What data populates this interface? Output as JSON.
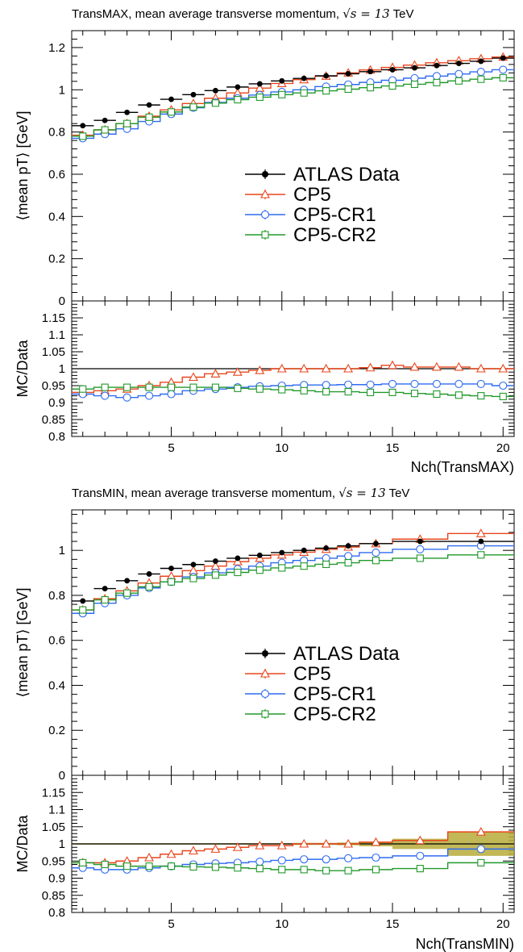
{
  "figure": {
    "panels": [
      {
        "title_text": "TransMAX, mean average transverse momentum, ",
        "title_math": "√s = 13",
        "title_unit": "TeV",
        "ylabel": "⟨mean pT⟩ [GeV]",
        "ratio_ylabel": "MC/Data",
        "xlabel": "Nch(TransMAX)"
      },
      {
        "title_text": "TransMIN, mean average transverse momentum, ",
        "title_math": "√s = 13",
        "title_unit": "TeV",
        "ylabel": "⟨mean pT⟩ [GeV]",
        "ratio_ylabel": "MC/Data",
        "xlabel": "Nch(TransMIN)"
      }
    ]
  },
  "chart_data": [
    {
      "type": "line",
      "panel": "TransMAX",
      "title": "TransMAX, mean average transverse momentum, √s = 13 TeV",
      "xlabel": "Nch(TransMAX)",
      "ylabel": "⟨mean pT⟩ [GeV]",
      "xlim": [
        0.5,
        20.5
      ],
      "ylim": [
        0,
        1.28
      ],
      "yticks": [
        0,
        0.2,
        0.4,
        0.6,
        0.8,
        1,
        1.2
      ],
      "xticks": [
        5,
        10,
        15,
        20
      ],
      "ratio_ylim": [
        0.8,
        1.2
      ],
      "ratio_yticks": [
        0.8,
        0.85,
        0.9,
        0.95,
        1,
        1.05,
        1.1,
        1.15
      ],
      "legend_position": "center-right",
      "data_points": {
        "name": "ATLAS Data",
        "x": [
          1,
          2,
          3,
          4,
          5,
          6,
          7,
          8,
          9,
          10,
          11,
          12,
          13,
          14,
          15,
          16,
          17,
          18,
          19,
          20
        ],
        "values": [
          0.83,
          0.855,
          0.893,
          0.928,
          0.955,
          0.977,
          0.996,
          1.013,
          1.028,
          1.042,
          1.054,
          1.066,
          1.076,
          1.086,
          1.095,
          1.104,
          1.115,
          1.125,
          1.135,
          1.15
        ]
      },
      "series": [
        {
          "name": "CP5",
          "color": "#e8461c",
          "marker": "triangle",
          "bin_edges": [
            0.5,
            1.5,
            2.5,
            3.5,
            4.5,
            5.5,
            6.5,
            7.5,
            8.5,
            9.5,
            10.5,
            11.5,
            12.5,
            13.5,
            14.5,
            15.5,
            16.5,
            17.5,
            18.5,
            19.5,
            20.5
          ],
          "values": [
            0.785,
            0.81,
            0.84,
            0.875,
            0.905,
            0.935,
            0.96,
            0.985,
            1.008,
            1.03,
            1.048,
            1.065,
            1.08,
            1.094,
            1.106,
            1.117,
            1.128,
            1.138,
            1.147,
            1.155
          ],
          "ratio": [
            0.93,
            0.935,
            0.94,
            0.95,
            0.96,
            0.975,
            0.985,
            0.99,
            0.995,
            1.0,
            1.0,
            1.0,
            1.0,
            1.003,
            1.01,
            1.005,
            1.005,
            1.005,
            1.0,
            1.0
          ]
        },
        {
          "name": "CP5-CR1",
          "color": "#2f6bf0",
          "marker": "circle",
          "bin_edges": [
            0.5,
            1.5,
            2.5,
            3.5,
            4.5,
            5.5,
            6.5,
            7.5,
            8.5,
            9.5,
            10.5,
            11.5,
            12.5,
            13.5,
            14.5,
            15.5,
            16.5,
            17.5,
            18.5,
            19.5,
            20.5
          ],
          "values": [
            0.77,
            0.79,
            0.815,
            0.85,
            0.885,
            0.915,
            0.94,
            0.96,
            0.975,
            0.99,
            1.0,
            1.015,
            1.025,
            1.035,
            1.045,
            1.055,
            1.065,
            1.075,
            1.085,
            1.095
          ],
          "ratio": [
            0.925,
            0.92,
            0.915,
            0.92,
            0.925,
            0.935,
            0.94,
            0.945,
            0.948,
            0.95,
            0.952,
            0.952,
            0.953,
            0.953,
            0.955,
            0.955,
            0.955,
            0.955,
            0.955,
            0.95
          ]
        },
        {
          "name": "CP5-CR2",
          "color": "#22992b",
          "marker": "square",
          "bin_edges": [
            0.5,
            1.5,
            2.5,
            3.5,
            4.5,
            5.5,
            6.5,
            7.5,
            8.5,
            9.5,
            10.5,
            11.5,
            12.5,
            13.5,
            14.5,
            15.5,
            16.5,
            17.5,
            18.5,
            19.5,
            20.5
          ],
          "values": [
            0.78,
            0.81,
            0.84,
            0.87,
            0.895,
            0.918,
            0.937,
            0.953,
            0.965,
            0.977,
            0.985,
            0.995,
            1.003,
            1.01,
            1.018,
            1.026,
            1.034,
            1.042,
            1.05,
            1.057
          ],
          "ratio": [
            0.94,
            0.945,
            0.945,
            0.945,
            0.945,
            0.945,
            0.945,
            0.942,
            0.94,
            0.938,
            0.935,
            0.932,
            0.932,
            0.93,
            0.93,
            0.927,
            0.925,
            0.922,
            0.92,
            0.918
          ]
        }
      ]
    },
    {
      "type": "line",
      "panel": "TransMIN",
      "title": "TransMIN, mean average transverse momentum, √s = 13 TeV",
      "xlabel": "Nch(TransMIN)",
      "ylabel": "⟨mean pT⟩ [GeV]",
      "xlim": [
        0.5,
        20.5
      ],
      "ylim": [
        0,
        1.18
      ],
      "yticks": [
        0,
        0.2,
        0.4,
        0.6,
        0.8,
        1
      ],
      "xticks": [
        5,
        10,
        15,
        20
      ],
      "ratio_ylim": [
        0.8,
        1.2
      ],
      "ratio_yticks": [
        0.8,
        0.85,
        0.9,
        0.95,
        1,
        1.05,
        1.1,
        1.15
      ],
      "legend_position": "center-right",
      "uncertainty_band": {
        "bin_edges": [
          0.5,
          1.5,
          2.5,
          3.5,
          4.5,
          5.5,
          6.5,
          7.5,
          8.5,
          9.5,
          10.5,
          11.5,
          12.5,
          13.5,
          15,
          17.5,
          20.5
        ],
        "low": [
          0.998,
          0.998,
          0.998,
          0.998,
          0.998,
          0.998,
          0.998,
          0.998,
          0.998,
          0.998,
          0.997,
          0.997,
          0.996,
          0.993,
          0.985,
          0.965
        ],
        "high": [
          1.002,
          1.002,
          1.002,
          1.002,
          1.002,
          1.002,
          1.002,
          1.002,
          1.002,
          1.002,
          1.003,
          1.003,
          1.004,
          1.007,
          1.015,
          1.035
        ]
      },
      "data_points": {
        "name": "ATLAS Data",
        "x": [
          1,
          2,
          3,
          4,
          5,
          6,
          7,
          8,
          9,
          10,
          11,
          12,
          13,
          14.25,
          16.25,
          19
        ],
        "values": [
          0.775,
          0.83,
          0.865,
          0.895,
          0.92,
          0.937,
          0.952,
          0.965,
          0.978,
          0.99,
          1.0,
          1.01,
          1.02,
          1.03,
          1.04,
          1.04
        ]
      },
      "series": [
        {
          "name": "CP5",
          "color": "#e8461c",
          "marker": "triangle",
          "bin_edges": [
            0.5,
            1.5,
            2.5,
            3.5,
            4.5,
            5.5,
            6.5,
            7.5,
            8.5,
            9.5,
            10.5,
            11.5,
            12.5,
            13.5,
            15,
            17.5,
            20.5
          ],
          "values": [
            0.735,
            0.785,
            0.82,
            0.855,
            0.885,
            0.91,
            0.93,
            0.95,
            0.965,
            0.98,
            0.992,
            1.005,
            1.015,
            1.03,
            1.05,
            1.075
          ],
          "ratio": [
            0.945,
            0.945,
            0.95,
            0.96,
            0.97,
            0.98,
            0.985,
            0.99,
            0.995,
            0.995,
            1.0,
            1.0,
            1.0,
            1.005,
            1.01,
            1.035
          ]
        },
        {
          "name": "CP5-CR1",
          "color": "#2f6bf0",
          "marker": "circle",
          "bin_edges": [
            0.5,
            1.5,
            2.5,
            3.5,
            4.5,
            5.5,
            6.5,
            7.5,
            8.5,
            9.5,
            10.5,
            11.5,
            12.5,
            13.5,
            15,
            17.5,
            20.5
          ],
          "values": [
            0.72,
            0.765,
            0.8,
            0.833,
            0.86,
            0.882,
            0.9,
            0.917,
            0.93,
            0.945,
            0.955,
            0.965,
            0.975,
            0.99,
            1.005,
            1.02
          ],
          "ratio": [
            0.93,
            0.925,
            0.925,
            0.93,
            0.935,
            0.94,
            0.943,
            0.945,
            0.948,
            0.952,
            0.955,
            0.955,
            0.958,
            0.96,
            0.965,
            0.985
          ]
        },
        {
          "name": "CP5-CR2",
          "color": "#22992b",
          "marker": "square",
          "bin_edges": [
            0.5,
            1.5,
            2.5,
            3.5,
            4.5,
            5.5,
            6.5,
            7.5,
            8.5,
            9.5,
            10.5,
            11.5,
            12.5,
            13.5,
            15,
            17.5,
            20.5
          ],
          "values": [
            0.735,
            0.78,
            0.81,
            0.838,
            0.86,
            0.875,
            0.89,
            0.902,
            0.912,
            0.922,
            0.93,
            0.938,
            0.945,
            0.955,
            0.965,
            0.98
          ],
          "ratio": [
            0.945,
            0.94,
            0.935,
            0.935,
            0.935,
            0.933,
            0.932,
            0.93,
            0.928,
            0.925,
            0.925,
            0.922,
            0.922,
            0.925,
            0.928,
            0.945
          ]
        }
      ]
    }
  ]
}
